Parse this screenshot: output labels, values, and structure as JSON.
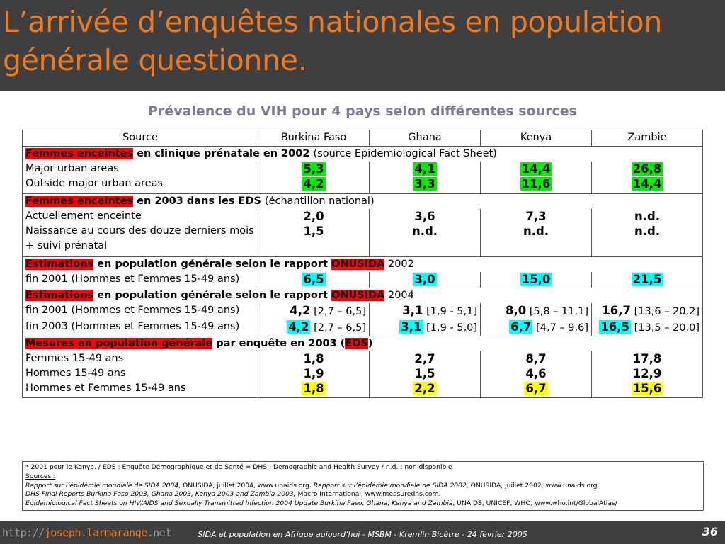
{
  "title": "L’arrivée d’enquêtes nationales en population générale questionne.",
  "subtitle": "Prévalence du VIH pour 4 pays selon différentes sources",
  "table": {
    "headers": [
      "Source",
      "Burkina Faso",
      "Ghana",
      "Kenya",
      "Zambie"
    ],
    "s1": {
      "hl": "Femmes enceintes",
      "title": " en clinique prénatale en 2002 ",
      "note": "(source Epidemiological Fact Sheet)"
    },
    "s1_rows": [
      {
        "label": "Major urban areas",
        "bf": "5,3",
        "gh": "4,1",
        "ke": "14,4",
        "za": "26,8"
      },
      {
        "label": "Outside major urban areas",
        "bf": "4,2",
        "gh": "3,3",
        "ke": "11,6",
        "za": "14,4"
      }
    ],
    "s2": {
      "hl": "Femmes enceintes",
      "title": " en 2003 dans les EDS ",
      "note": "(échantillon national)"
    },
    "s2_rows": [
      {
        "label": "Actuellement enceinte",
        "bf": "2,0",
        "gh": "3,6",
        "ke": "7,3",
        "za": "n.d."
      },
      {
        "label": "Naissance au cours des douze derniers mois + suivi prénatal",
        "bf": "1,5",
        "gh": "n.d.",
        "ke": "n.d.",
        "za": "n.d."
      }
    ],
    "s3": {
      "hl": "Estimations",
      "title": " en population générale selon le rapport ",
      "hl2": "ONUSIDA",
      "year": " 2002"
    },
    "s3_rows": [
      {
        "label": "fin 2001 (Hommes et Femmes 15-49 ans)",
        "bf": "6,5",
        "gh": "3,0",
        "ke": "15,0",
        "za": "21,5"
      }
    ],
    "s4": {
      "hl": "Estimations",
      "title": " en population générale selon le rapport ",
      "hl2": "ONUSIDA",
      "year": " 2004"
    },
    "s4_rows": [
      {
        "label": "fin 2001 (Hommes et Femmes 15-49 ans)",
        "bf": "4,2",
        "bf_r": " [2,7 – 6,5]",
        "gh": "3,1",
        "gh_r": " [1,9 - 5,1]",
        "ke": "8,0",
        "ke_r": " [5,8 – 11,1]",
        "za": "16,7",
        "za_r": " [13,6 – 20,2]"
      },
      {
        "label": "fin 2003 (Hommes et Femmes 15-49 ans)",
        "bf": "4,2",
        "bf_r": " [2,7 – 6,5]",
        "gh": "3,1",
        "gh_r": " [1,9 - 5,0]",
        "ke": "6,7",
        "ke_r": " [4,7 – 9,6]",
        "za": "16,5",
        "za_r": " [13,5 – 20,0]"
      }
    ],
    "s5": {
      "hl": "Mesures en population générale",
      "title": " par enquête en 2003 (",
      "hl2": "EDS",
      "close": ")"
    },
    "s5_rows": [
      {
        "label": "Femmes 15-49 ans",
        "bf": "1,8",
        "gh": "2,7",
        "ke": "8,7",
        "za": "17,8"
      },
      {
        "label": "Hommes 15-49 ans",
        "bf": "1,9",
        "gh": "1,5",
        "ke": "4,6",
        "za": "12,9"
      },
      {
        "label": "Hommes et Femmes 15-49 ans",
        "bf": "1,8",
        "gh": "2,2",
        "ke": "6,7",
        "za": "15,6"
      }
    ]
  },
  "notes": {
    "line1": "* 2001 pour le Kenya.  / EDS : Enquête Démographique et de Santé = DHS : Demographic and Health Survey / n.d. : non disponible",
    "sources_label": "Sources :",
    "l3a": "Rapport sur l’épidémie mondiale de SIDA 2004",
    "l3b": ", ONUSIDA, juillet 2004, www.unaids.org. ",
    "l3c": "Rapport sur l’épidémie mondiale de SIDA 2002",
    "l3d": ", ONUSIDA, juillet 2002, www.unaids.org.",
    "l4a": "DHS Final Reports Burkina Faso 2003, Ghana 2003, Kenya 2003 and Zambia 2003,",
    "l4b": "  Macro International, www.measuredhs.com.",
    "l5a": "Epidemiological Fact Sheets on HIV/AIDS and Sexually Transmitted Infection 2004 Update Burkina Faso, Ghana, Kenya and Zambia",
    "l5b": ", UNAIDS, UNICEF, WHO, www.who.int/GlobalAtlas/"
  },
  "footer": {
    "url_a": "http://",
    "url_b": "joseph.larmarange",
    "url_c": ".net",
    "text": "SIDA et population en Afrique aujourd’hui - MSBM - Kremlin Bicêtre - 24 février 2005",
    "page": "36"
  },
  "colors": {
    "header_bg": "#3f3f3f",
    "title": "#f07a1e",
    "subtitle": "#7d7d99",
    "highlight_green": "#00ee00",
    "highlight_cyan": "#00ffff",
    "highlight_yellow": "#ffff00",
    "highlight_red": "#ff0000"
  }
}
